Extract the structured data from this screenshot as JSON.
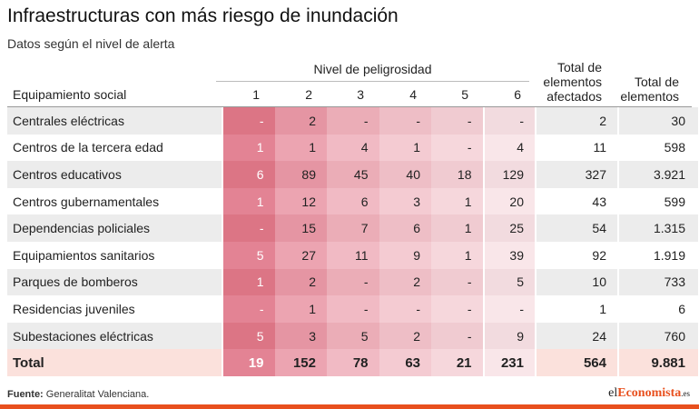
{
  "title": "Infraestructuras con más riesgo de inundación",
  "subtitle": "Datos según el nivel de alerta",
  "headers": {
    "group": "Nivel de peligrosidad",
    "first": "Equipamiento social",
    "levels": [
      "1",
      "2",
      "3",
      "4",
      "5",
      "6"
    ],
    "afectados": [
      "Total de",
      "elementos",
      "afectados"
    ],
    "total": [
      "Total de",
      "elementos"
    ]
  },
  "colors": {
    "level_columns": [
      "#e38394",
      "#eca4b1",
      "#f1bac4",
      "#f4cbd2",
      "#f6d7dc",
      "#f9e6e9"
    ],
    "level_columns_alt": [
      "#dc7585",
      "#e595a3",
      "#ebadb7",
      "#eebec6",
      "#f0cbd1",
      "#f2dbdf"
    ],
    "accent": "#e8501e"
  },
  "chart_data": {
    "type": "table",
    "columns": [
      "Equipamiento social",
      "1",
      "2",
      "3",
      "4",
      "5",
      "6",
      "Total de elementos afectados",
      "Total de elementos"
    ],
    "rows": [
      [
        "Centrales eléctricas",
        "-",
        "2",
        "-",
        "-",
        "-",
        "-",
        "2",
        "30"
      ],
      [
        "Centros de la tercera edad",
        "1",
        "1",
        "4",
        "1",
        "-",
        "4",
        "11",
        "598"
      ],
      [
        "Centros educativos",
        "6",
        "89",
        "45",
        "40",
        "18",
        "129",
        "327",
        "3.921"
      ],
      [
        "Centros gubernamentales",
        "1",
        "12",
        "6",
        "3",
        "1",
        "20",
        "43",
        "599"
      ],
      [
        "Dependencias policiales",
        "-",
        "15",
        "7",
        "6",
        "1",
        "25",
        "54",
        "1.315"
      ],
      [
        "Equipamientos sanitarios",
        "5",
        "27",
        "11",
        "9",
        "1",
        "39",
        "92",
        "1.919"
      ],
      [
        "Parques de bomberos",
        "1",
        "2",
        "-",
        "2",
        "-",
        "5",
        "10",
        "733"
      ],
      [
        "Residencias juveniles",
        "-",
        "1",
        "-",
        "-",
        "-",
        "-",
        "1",
        "6"
      ],
      [
        "Subestaciones eléctricas",
        "5",
        "3",
        "5",
        "2",
        "-",
        "9",
        "24",
        "760"
      ]
    ],
    "total": [
      "Total",
      "19",
      "152",
      "78",
      "63",
      "21",
      "231",
      "564",
      "9.881"
    ]
  },
  "footer": {
    "source_label": "Fuente:",
    "source_text": "Generalitat Valenciana."
  },
  "logo": {
    "pre": "el",
    "mid": "Economista",
    "suf": ".es"
  }
}
